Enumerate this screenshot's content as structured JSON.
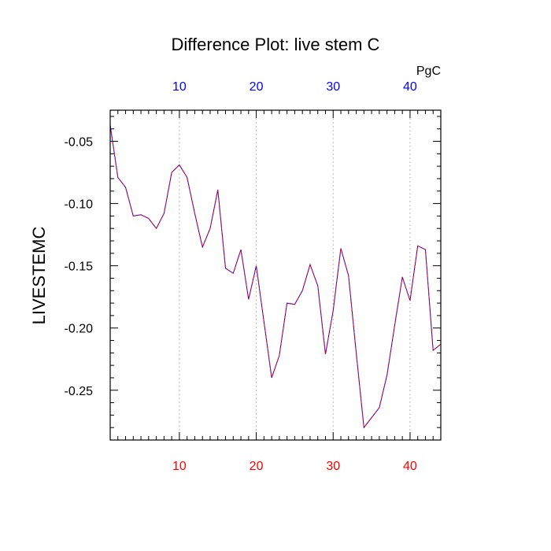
{
  "chart_data": {
    "type": "line",
    "title": "Difference Plot: live stem C",
    "ylabel": "LIVESTEMC",
    "xlabel": "",
    "top_axis_unit": "PgC",
    "xlim": [
      1,
      44
    ],
    "ylim": [
      -0.29,
      -0.025
    ],
    "x_ticks": [
      10,
      20,
      30,
      40
    ],
    "x_tick_labels": [
      "10",
      "20",
      "30",
      "40"
    ],
    "y_ticks": [
      -0.05,
      -0.1,
      -0.15,
      -0.2,
      -0.25
    ],
    "y_tick_labels": [
      "-0.05",
      "-0.10",
      "-0.15",
      "-0.20",
      "-0.25"
    ],
    "grid": "vertical dotted at major x ticks",
    "colors": {
      "line_primary": "#0000ff",
      "line_overlay": "#ff0000",
      "top_tick_labels": "#0000ff",
      "bottom_tick_labels": "#ff0000",
      "axis": "#000000",
      "grid": "#aaaaaa"
    },
    "series": [
      {
        "x": [
          1,
          2,
          3,
          4,
          5,
          6,
          7,
          8,
          9,
          10,
          11,
          12,
          13,
          14,
          15,
          16,
          17,
          18,
          19,
          20,
          21,
          22,
          23,
          24,
          25,
          26,
          27,
          28,
          29,
          30,
          31,
          32,
          33,
          34,
          35,
          36,
          37,
          38,
          39,
          40,
          41,
          42,
          43,
          44
        ],
        "values": [
          -0.037,
          -0.079,
          -0.087,
          -0.11,
          -0.109,
          -0.112,
          -0.12,
          -0.108,
          -0.075,
          -0.069,
          -0.079,
          -0.108,
          -0.135,
          -0.12,
          -0.089,
          -0.152,
          -0.156,
          -0.137,
          -0.177,
          -0.15,
          -0.195,
          -0.24,
          -0.222,
          -0.18,
          -0.181,
          -0.17,
          -0.149,
          -0.166,
          -0.221,
          -0.186,
          -0.136,
          -0.158,
          -0.22,
          -0.28,
          -0.272,
          -0.264,
          -0.238,
          -0.198,
          -0.159,
          -0.178,
          -0.134,
          -0.137,
          -0.218,
          -0.213
        ]
      }
    ]
  }
}
